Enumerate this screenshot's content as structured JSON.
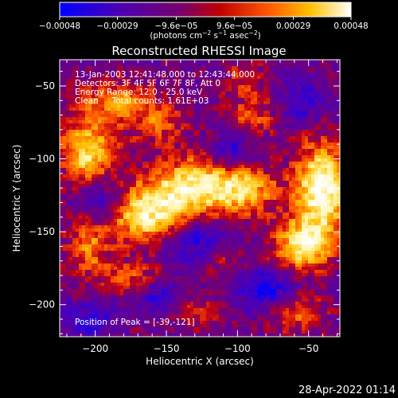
{
  "chart_data": {
    "type": "heatmap",
    "title": "Reconstructed RHESSI Image",
    "xlabel": "Heliocentric X (arcsec)",
    "ylabel": "Heliocentric Y (arcsec)",
    "xlim": [
      -225,
      -28
    ],
    "ylim": [
      -222,
      -32
    ],
    "x_ticks": [
      -200,
      -150,
      -100,
      -50
    ],
    "x_tick_labels": [
      "−200",
      "−150",
      "−100",
      "−50"
    ],
    "y_ticks": [
      -50,
      -100,
      -150,
      -200
    ],
    "y_tick_labels": [
      "−50",
      "−100",
      "−150",
      "−200"
    ],
    "colorbar": {
      "range": [
        -0.00048,
        0.00048
      ],
      "ticks": [
        -0.00048,
        -0.00029,
        -9.6e-05,
        9.6e-05,
        0.00029,
        0.00048
      ],
      "tick_labels": [
        "−0.00048",
        "−0.00029",
        "−9.6e−05",
        "9.6e−05",
        "0.00029",
        "0.00048"
      ],
      "unit_label": {
        "prefix": "(photons cm",
        "sup1": "−2",
        "mid1": " s",
        "sup2": "−1",
        "mid2": " asec",
        "sup3": "−2",
        "suffix": ")"
      },
      "colors": [
        "#0000ff",
        "#5500aa",
        "#800080",
        "#b80000",
        "#ff6a00",
        "#ffd000",
        "#ffffff"
      ]
    },
    "annotations": [
      "13-Jan-2003 12:41:48.000 to 12:43:44.000",
      "Detectors: 3F 4F 5F 6F 7F 8F, Att 0",
      "Energy Range: 12.0 - 25.0 keV",
      "Clean     Total counts: 1.61E+03"
    ],
    "peak_label": "Position of Peak = [-39,-121]",
    "peak": [
      -39,
      -121
    ],
    "emission_blobs": [
      {
        "x": -165,
        "y": -138,
        "sx": 22,
        "sy": 14,
        "a": 1.0
      },
      {
        "x": -130,
        "y": -118,
        "sx": 20,
        "sy": 14,
        "a": 0.9
      },
      {
        "x": -95,
        "y": -122,
        "sx": 16,
        "sy": 12,
        "a": 0.7
      },
      {
        "x": -40,
        "y": -121,
        "sx": 14,
        "sy": 22,
        "a": 1.15
      },
      {
        "x": -55,
        "y": -160,
        "sx": 14,
        "sy": 12,
        "a": 0.9
      },
      {
        "x": -205,
        "y": -95,
        "sx": 14,
        "sy": 16,
        "a": 0.9
      },
      {
        "x": -205,
        "y": -160,
        "sx": 10,
        "sy": 14,
        "a": 0.55
      },
      {
        "x": -185,
        "y": -60,
        "sx": 18,
        "sy": 10,
        "a": 0.55
      },
      {
        "x": -155,
        "y": -75,
        "sx": 14,
        "sy": 10,
        "a": 0.45
      },
      {
        "x": -90,
        "y": -70,
        "sx": 14,
        "sy": 10,
        "a": 0.4
      },
      {
        "x": -175,
        "y": -180,
        "sx": 14,
        "sy": 8,
        "a": 0.45
      },
      {
        "x": -110,
        "y": -170,
        "sx": 10,
        "sy": 8,
        "a": 0.35
      },
      {
        "x": -130,
        "y": -205,
        "sx": 12,
        "sy": 8,
        "a": 0.35
      },
      {
        "x": -60,
        "y": -205,
        "sx": 14,
        "sy": 10,
        "a": 0.5
      },
      {
        "x": -95,
        "y": -45,
        "sx": 12,
        "sy": 8,
        "a": 0.35
      }
    ],
    "negative_blobs": [
      {
        "x": -195,
        "y": -130,
        "sx": 12,
        "sy": 12,
        "a": 0.6
      },
      {
        "x": -130,
        "y": -155,
        "sx": 16,
        "sy": 12,
        "a": 0.55
      },
      {
        "x": -80,
        "y": -190,
        "sx": 14,
        "sy": 10,
        "a": 0.65
      },
      {
        "x": -105,
        "y": -95,
        "sx": 10,
        "sy": 8,
        "a": 0.5
      },
      {
        "x": -55,
        "y": -60,
        "sx": 12,
        "sy": 10,
        "a": 0.45
      },
      {
        "x": -205,
        "y": -210,
        "sx": 12,
        "sy": 8,
        "a": 0.5
      },
      {
        "x": -155,
        "y": -195,
        "sx": 10,
        "sy": 8,
        "a": 0.45
      }
    ],
    "grid": false
  },
  "timestamp": "28-Apr-2022 01:14"
}
